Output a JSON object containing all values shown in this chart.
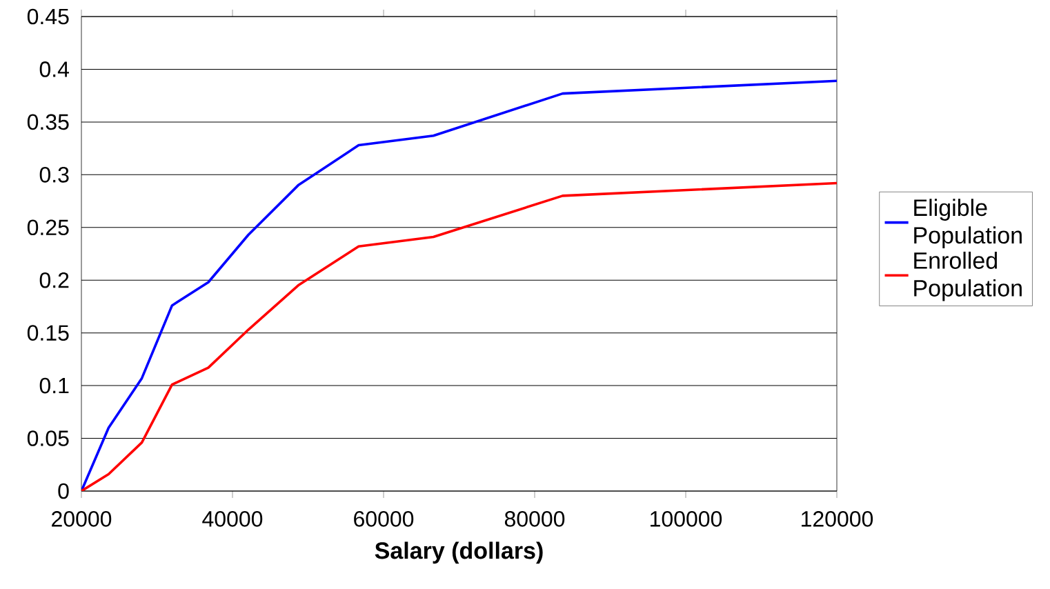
{
  "chart_data": {
    "type": "line",
    "xlabel": "Salary (dollars)",
    "xlim": [
      20000,
      120000
    ],
    "xticks": [
      20000,
      40000,
      60000,
      80000,
      100000,
      120000
    ],
    "ylim": [
      0,
      0.45
    ],
    "yticks": [
      0,
      0.05,
      0.1,
      0.15,
      0.2,
      0.25,
      0.3,
      0.35,
      0.4,
      0.45
    ],
    "grid": "y",
    "legend": "right",
    "marker": "none",
    "line_style": "solid",
    "series": [
      {
        "name": "Eligible Population",
        "color": "#0000ff",
        "x": [
          20000,
          23600,
          28000,
          32000,
          36800,
          42100,
          48700,
          56700,
          66600,
          83700,
          120000
        ],
        "values": [
          0,
          0.06,
          0.107,
          0.176,
          0.198,
          0.243,
          0.29,
          0.328,
          0.337,
          0.377,
          0.389
        ]
      },
      {
        "name": "Enrolled Population",
        "color": "#ff0000",
        "x": [
          20000,
          23600,
          28000,
          32000,
          36800,
          42100,
          48700,
          56700,
          66600,
          83700,
          120000
        ],
        "values": [
          0,
          0.016,
          0.046,
          0.101,
          0.117,
          0.153,
          0.195,
          0.232,
          0.241,
          0.28,
          0.292
        ]
      }
    ]
  }
}
